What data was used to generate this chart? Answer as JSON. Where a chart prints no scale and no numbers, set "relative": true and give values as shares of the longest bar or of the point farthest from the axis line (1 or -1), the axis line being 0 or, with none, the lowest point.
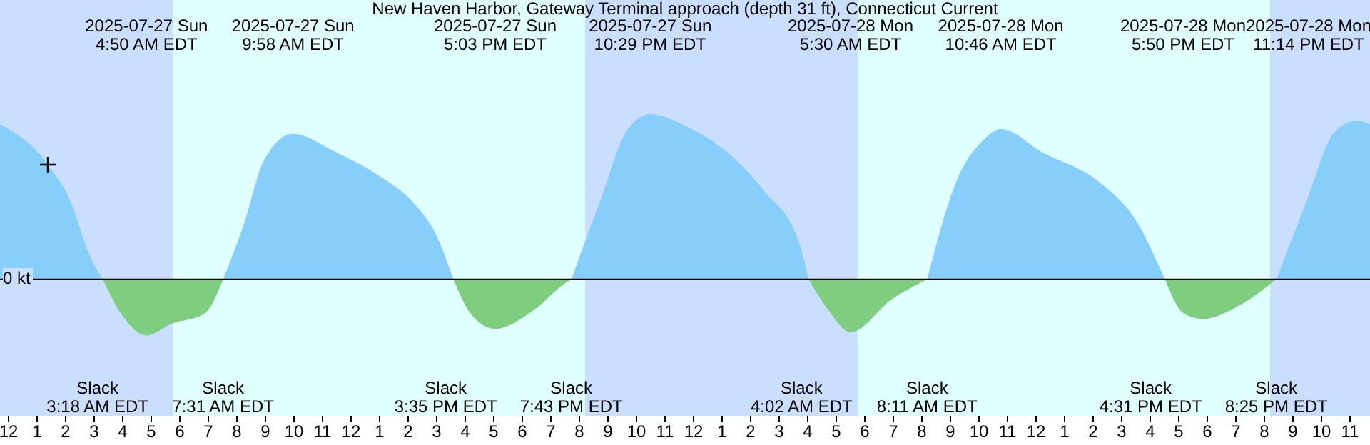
{
  "chart_data": {
    "type": "area",
    "title": "New Haven Harbor, Gateway Terminal approach (depth 31 ft), Connecticut Current",
    "relative": true,
    "x": [
      "2025-07-26T23:42",
      "2025-07-27T01:21",
      "2025-07-27T02:12",
      "2025-07-27T02:48",
      "2025-07-27T03:18",
      "2025-07-27T03:57",
      "2025-07-27T04:50",
      "2025-07-27T05:42",
      "2025-07-27T06:51",
      "2025-07-27T07:31",
      "2025-07-27T08:12",
      "2025-07-27T08:57",
      "2025-07-27T09:58",
      "2025-07-27T11:27",
      "2025-07-27T12:57",
      "2025-07-27T14:12",
      "2025-07-27T14:57",
      "2025-07-27T15:35",
      "2025-07-27T16:12",
      "2025-07-27T17:03",
      "2025-07-27T18:27",
      "2025-07-27T19:27",
      "2025-07-27T19:43",
      "2025-07-27T20:42",
      "2025-07-27T21:42",
      "2025-07-27T22:29",
      "2025-07-27T23:42",
      "2025-07-28T00:57",
      "2025-07-28T02:27",
      "2025-07-28T03:42",
      "2025-07-28T04:02",
      "2025-07-28T04:42",
      "2025-07-28T05:30",
      "2025-07-28T06:57",
      "2025-07-28T08:11",
      "2025-07-28T09:12",
      "2025-07-28T10:12",
      "2025-07-28T10:46",
      "2025-07-28T12:12",
      "2025-07-28T14:12",
      "2025-07-28T15:27",
      "2025-07-28T16:31",
      "2025-07-28T17:12",
      "2025-07-28T17:50",
      "2025-07-28T19:12",
      "2025-07-28T20:25",
      "2025-07-28T21:27",
      "2025-07-28T22:27",
      "2025-07-28T23:14",
      "2025-07-28T23:42"
    ],
    "series": [
      {
        "color": "#87cefa",
        "values": [
          0.94,
          0.7,
          0.46,
          0.16,
          0,
          null,
          null,
          null,
          null,
          0,
          0.31,
          0.72,
          0.88,
          0.77,
          0.63,
          0.46,
          0.28,
          0,
          null,
          null,
          null,
          null,
          0,
          0.46,
          0.91,
          1,
          0.93,
          0.8,
          0.54,
          0.22,
          0,
          null,
          null,
          null,
          0,
          0.59,
          0.85,
          0.91,
          0.77,
          0.59,
          0.37,
          0,
          null,
          null,
          null,
          0,
          0.46,
          0.89,
          0.96,
          0.94
        ]
      },
      {
        "color": "#7fce7f",
        "values": [
          null,
          null,
          null,
          null,
          0,
          -0.21,
          -0.34,
          -0.27,
          -0.21,
          0,
          null,
          null,
          null,
          null,
          null,
          null,
          null,
          0,
          -0.21,
          -0.3,
          -0.18,
          -0.03,
          0,
          null,
          null,
          null,
          null,
          null,
          null,
          null,
          0,
          -0.18,
          -0.32,
          -0.12,
          0,
          null,
          null,
          null,
          null,
          null,
          null,
          0,
          -0.21,
          -0.24,
          -0.15,
          0,
          null,
          null,
          null,
          null
        ]
      }
    ],
    "xlim": [
      "2025-07-26T23:42",
      "2025-07-28T23:42"
    ],
    "xticks": [
      {
        "value": "2025-07-27T00:00",
        "label": "12"
      },
      {
        "value": "2025-07-27T01:00",
        "label": "1"
      },
      {
        "value": "2025-07-27T02:00",
        "label": "2"
      },
      {
        "value": "2025-07-27T03:00",
        "label": "3"
      },
      {
        "value": "2025-07-27T04:00",
        "label": "4"
      },
      {
        "value": "2025-07-27T05:00",
        "label": "5"
      },
      {
        "value": "2025-07-27T06:00",
        "label": "6"
      },
      {
        "value": "2025-07-27T07:00",
        "label": "7"
      },
      {
        "value": "2025-07-27T08:00",
        "label": "8"
      },
      {
        "value": "2025-07-27T09:00",
        "label": "9"
      },
      {
        "value": "2025-07-27T10:00",
        "label": "10"
      },
      {
        "value": "2025-07-27T11:00",
        "label": "11"
      },
      {
        "value": "2025-07-27T12:00",
        "label": "12"
      },
      {
        "value": "2025-07-27T13:00",
        "label": "1"
      },
      {
        "value": "2025-07-27T14:00",
        "label": "2"
      },
      {
        "value": "2025-07-27T15:00",
        "label": "3"
      },
      {
        "value": "2025-07-27T16:00",
        "label": "4"
      },
      {
        "value": "2025-07-27T17:00",
        "label": "5"
      },
      {
        "value": "2025-07-27T18:00",
        "label": "6"
      },
      {
        "value": "2025-07-27T19:00",
        "label": "7"
      },
      {
        "value": "2025-07-27T20:00",
        "label": "8"
      },
      {
        "value": "2025-07-27T21:00",
        "label": "9"
      },
      {
        "value": "2025-07-27T22:00",
        "label": "10"
      },
      {
        "value": "2025-07-27T23:00",
        "label": "11"
      },
      {
        "value": "2025-07-28T00:00",
        "label": "12"
      },
      {
        "value": "2025-07-28T01:00",
        "label": "1"
      },
      {
        "value": "2025-07-28T02:00",
        "label": "2"
      },
      {
        "value": "2025-07-28T03:00",
        "label": "3"
      },
      {
        "value": "2025-07-28T04:00",
        "label": "4"
      },
      {
        "value": "2025-07-28T05:00",
        "label": "5"
      },
      {
        "value": "2025-07-28T06:00",
        "label": "6"
      },
      {
        "value": "2025-07-28T07:00",
        "label": "7"
      },
      {
        "value": "2025-07-28T08:00",
        "label": "8"
      },
      {
        "value": "2025-07-28T09:00",
        "label": "9"
      },
      {
        "value": "2025-07-28T10:00",
        "label": "10"
      },
      {
        "value": "2025-07-28T11:00",
        "label": "11"
      },
      {
        "value": "2025-07-28T12:00",
        "label": "12"
      },
      {
        "value": "2025-07-28T13:00",
        "label": "1"
      },
      {
        "value": "2025-07-28T14:00",
        "label": "2"
      },
      {
        "value": "2025-07-28T15:00",
        "label": "3"
      },
      {
        "value": "2025-07-28T16:00",
        "label": "4"
      },
      {
        "value": "2025-07-28T17:00",
        "label": "5"
      },
      {
        "value": "2025-07-28T18:00",
        "label": "6"
      },
      {
        "value": "2025-07-28T19:00",
        "label": "7"
      },
      {
        "value": "2025-07-28T20:00",
        "label": "8"
      },
      {
        "value": "2025-07-28T21:00",
        "label": "9"
      },
      {
        "value": "2025-07-28T22:00",
        "label": "10"
      },
      {
        "value": "2025-07-28T23:00",
        "label": "11"
      }
    ],
    "ref_lines": [
      {
        "axis": "y",
        "value": 0,
        "label": "0 kt",
        "color": "#000000"
      }
    ],
    "bands": [
      {
        "axis": "x",
        "from": "2025-07-26T23:42",
        "to": "2025-07-27T05:45",
        "color": "#cadfff"
      },
      {
        "axis": "x",
        "from": "2025-07-27T05:45",
        "to": "2025-07-27T20:12",
        "color": "#e0ffff"
      },
      {
        "axis": "x",
        "from": "2025-07-27T20:12",
        "to": "2025-07-28T05:45",
        "color": "#cadfff"
      },
      {
        "axis": "x",
        "from": "2025-07-28T05:45",
        "to": "2025-07-28T20:12",
        "color": "#e0ffff"
      },
      {
        "axis": "x",
        "from": "2025-07-28T20:12",
        "to": "2025-07-28T23:42",
        "color": "#cadfff"
      }
    ],
    "annotations": [
      "2025-07-27 Sun\n4:50 AM EDT",
      "2025-07-27 Sun\n9:58 AM EDT",
      "2025-07-27 Sun\n5:03 PM EDT",
      "2025-07-27 Sun\n10:29 PM EDT",
      "2025-07-28 Mon\n5:30 AM EDT",
      "2025-07-28 Mon\n10:46 AM EDT",
      "2025-07-28 Mon\n5:50 PM EDT",
      "2025-07-28 Mon\n11:14 PM EDT",
      "Slack\n3:18 AM EDT",
      "Slack\n7:31 AM EDT",
      "Slack\n3:35 PM EDT",
      "Slack\n7:43 PM EDT",
      "Slack\n4:02 AM EDT",
      "Slack\n8:11 AM EDT",
      "Slack\n4:31 PM EDT",
      "Slack\n8:25 PM EDT"
    ]
  }
}
